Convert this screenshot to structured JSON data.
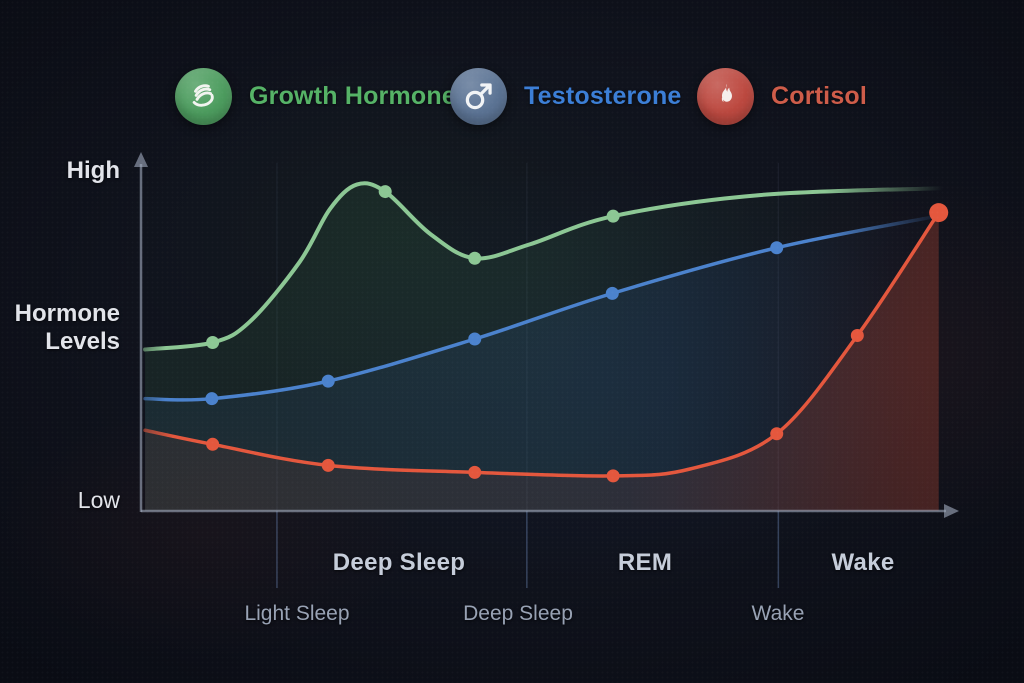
{
  "legend": {
    "items": [
      {
        "label": "Growth Hormone",
        "text_color": "#55b266",
        "circle_color": "#4d9d5f",
        "icon": "muscle-scribble-icon"
      },
      {
        "label": "Testosterone",
        "text_color": "#3b7ed6",
        "circle_color": "#5c7495",
        "icon": "male-symbol-icon"
      },
      {
        "label": "Cortisol",
        "text_color": "#ce5c49",
        "circle_color": "#bd4940",
        "icon": "flame-icon"
      }
    ]
  },
  "y_axis": {
    "high": "High",
    "axis_title": "Hormone Levels",
    "low": "Low"
  },
  "x_axis": {
    "stage_labels": [
      "Deep Sleep",
      "REM",
      "Wake"
    ],
    "sub_labels": [
      "Light Sleep",
      "Deep Sleep",
      "Wake"
    ]
  },
  "chart_data": {
    "type": "line",
    "title": "",
    "ylabel": "Hormone Levels",
    "xlabel": "",
    "y_range": [
      0,
      100
    ],
    "y_tick_labels": [
      "Low",
      "High"
    ],
    "x_stage_labels": [
      "Deep Sleep",
      "REM",
      "Wake"
    ],
    "x_sub_labels": [
      "Light Sleep",
      "Deep Sleep",
      "Wake"
    ],
    "legend_position": "top",
    "grid": "faint vertical stage boundaries",
    "stage_boundaries_frac": [
      0.167,
      0.474,
      0.783
    ],
    "series": [
      {
        "name": "Growth Hormone",
        "color": "#8cc794",
        "area_color": "#4e9b5e",
        "width": 4,
        "end_fade": true,
        "points": [
          [
            0.005,
            46,
            0
          ],
          [
            0.088,
            48,
            1
          ],
          [
            0.134,
            54,
            0
          ],
          [
            0.195,
            71,
            0
          ],
          [
            0.232,
            86,
            0
          ],
          [
            0.265,
            93,
            0
          ],
          [
            0.3,
            91,
            1
          ],
          [
            0.355,
            79,
            0
          ],
          [
            0.41,
            72,
            1
          ],
          [
            0.478,
            76,
            0
          ],
          [
            0.58,
            84,
            1
          ],
          [
            0.76,
            90,
            0
          ],
          [
            0.99,
            92,
            0
          ]
        ]
      },
      {
        "name": "Testosterone",
        "color": "#4b82cd",
        "area_color": "#3b6fbe",
        "width": 3.5,
        "end_fade": true,
        "points": [
          [
            0.005,
            32,
            0
          ],
          [
            0.087,
            32,
            1
          ],
          [
            0.23,
            37,
            1
          ],
          [
            0.41,
            49,
            1
          ],
          [
            0.579,
            62,
            1
          ],
          [
            0.781,
            75,
            1
          ],
          [
            0.978,
            84,
            0
          ]
        ]
      },
      {
        "name": "Cortisol",
        "color": "#e4573d",
        "area_color": "#cf4f36",
        "width": 3.5,
        "end_fade": false,
        "points": [
          [
            0.005,
            23,
            0
          ],
          [
            0.088,
            19,
            1
          ],
          [
            0.23,
            13,
            1
          ],
          [
            0.41,
            11,
            1
          ],
          [
            0.58,
            10,
            1
          ],
          [
            0.675,
            12,
            0
          ],
          [
            0.781,
            22,
            1
          ],
          [
            0.88,
            50,
            1
          ],
          [
            0.98,
            85,
            2
          ]
        ]
      }
    ]
  }
}
